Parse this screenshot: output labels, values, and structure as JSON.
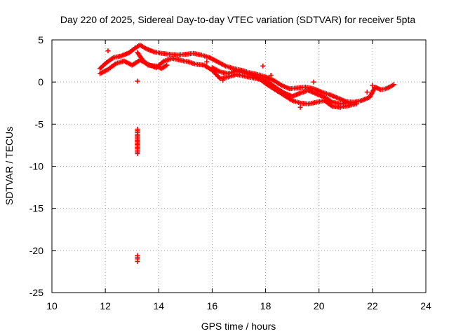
{
  "chart_data": {
    "type": "scatter",
    "title": "Day 220 of 2025, Sidereal Day-to-day VTEC variation (SDTVAR) for receiver 5pta",
    "xlabel": "GPS time / hours",
    "ylabel": "SDTVAR / TECUs",
    "xlim": [
      10,
      24
    ],
    "ylim": [
      -25,
      5
    ],
    "xticks": [
      10,
      12,
      14,
      16,
      18,
      20,
      22,
      24
    ],
    "yticks": [
      5,
      0,
      -5,
      -10,
      -15,
      -20,
      -25
    ],
    "grid": true,
    "marker": "plus",
    "color": "#ff0000",
    "series": [
      {
        "name": "SDTVAR",
        "tracks": [
          {
            "label": "main-band-upper",
            "points": [
              [
                11.8,
                1.6
              ],
              [
                12.0,
                2.2
              ],
              [
                12.3,
                2.9
              ],
              [
                12.6,
                3.1
              ],
              [
                12.9,
                3.5
              ],
              [
                13.1,
                4.0
              ],
              [
                13.3,
                4.4
              ],
              [
                13.5,
                4.0
              ],
              [
                13.8,
                3.6
              ],
              [
                14.1,
                3.4
              ],
              [
                14.4,
                3.3
              ],
              [
                14.7,
                3.2
              ],
              [
                15.0,
                3.3
              ],
              [
                15.3,
                3.4
              ],
              [
                15.6,
                3.2
              ],
              [
                15.9,
                2.9
              ],
              [
                16.2,
                2.4
              ],
              [
                16.5,
                1.9
              ],
              [
                16.8,
                1.6
              ],
              [
                17.1,
                1.4
              ],
              [
                17.4,
                1.1
              ],
              [
                17.7,
                0.9
              ],
              [
                18.0,
                0.6
              ],
              [
                18.3,
                0.2
              ],
              [
                18.6,
                -0.4
              ],
              [
                18.9,
                -0.8
              ],
              [
                19.2,
                -0.7
              ],
              [
                19.5,
                -0.6
              ],
              [
                19.8,
                -0.8
              ],
              [
                20.1,
                -1.2
              ],
              [
                20.4,
                -1.5
              ],
              [
                20.7,
                -1.9
              ],
              [
                21.0,
                -2.3
              ],
              [
                21.3,
                -2.4
              ],
              [
                21.6,
                -2.2
              ],
              [
                21.9,
                -1.8
              ],
              [
                22.1,
                -0.6
              ],
              [
                22.3,
                -0.9
              ],
              [
                22.5,
                -0.8
              ],
              [
                22.7,
                -0.5
              ],
              [
                22.8,
                -0.3
              ]
            ]
          },
          {
            "label": "main-band-lower",
            "points": [
              [
                11.8,
                1.0
              ],
              [
                12.1,
                1.5
              ],
              [
                12.4,
                2.2
              ],
              [
                12.7,
                2.5
              ],
              [
                13.0,
                2.0
              ],
              [
                13.3,
                2.6
              ],
              [
                13.6,
                2.1
              ],
              [
                13.9,
                1.7
              ],
              [
                14.2,
                2.5
              ],
              [
                14.5,
                2.8
              ],
              [
                14.8,
                2.6
              ],
              [
                15.1,
                2.4
              ],
              [
                15.4,
                2.1
              ],
              [
                15.7,
                2.0
              ],
              [
                16.0,
                1.4
              ],
              [
                16.3,
                0.4
              ],
              [
                16.6,
                0.6
              ],
              [
                16.9,
                0.9
              ],
              [
                17.2,
                0.7
              ],
              [
                17.5,
                0.5
              ],
              [
                17.8,
                0.3
              ],
              [
                18.1,
                -0.4
              ],
              [
                18.4,
                -1.0
              ],
              [
                18.7,
                -1.6
              ],
              [
                19.0,
                -2.2
              ],
              [
                19.3,
                -2.5
              ],
              [
                19.6,
                -2.6
              ],
              [
                19.9,
                -2.4
              ],
              [
                20.2,
                -2.2
              ],
              [
                20.5,
                -2.9
              ],
              [
                20.8,
                -3.0
              ],
              [
                21.1,
                -2.8
              ],
              [
                21.4,
                -2.6
              ]
            ]
          },
          {
            "label": "mid-band",
            "points": [
              [
                16.0,
                1.7
              ],
              [
                16.3,
                1.2
              ],
              [
                16.6,
                1.0
              ],
              [
                16.9,
                1.3
              ],
              [
                17.2,
                1.1
              ],
              [
                17.5,
                0.8
              ],
              [
                17.8,
                0.4
              ],
              [
                18.1,
                0.0
              ],
              [
                18.4,
                -0.7
              ],
              [
                18.7,
                -1.3
              ],
              [
                19.0,
                -1.7
              ],
              [
                19.3,
                -1.3
              ],
              [
                19.6,
                -1.0
              ],
              [
                19.9,
                -1.4
              ],
              [
                20.2,
                -1.8
              ],
              [
                20.5,
                -2.4
              ],
              [
                20.8,
                -2.6
              ],
              [
                21.1,
                -2.5
              ]
            ]
          },
          {
            "label": "dip-branch",
            "points": [
              [
                13.2,
                3.5
              ],
              [
                13.4,
                2.6
              ],
              [
                13.6,
                2.0
              ],
              [
                13.9,
                1.9
              ],
              [
                14.1,
                1.6
              ],
              [
                14.3,
                2.0
              ]
            ]
          },
          {
            "label": "outlier-minus-7",
            "points": [
              [
                13.2,
                -5.6
              ],
              [
                13.2,
                -6.2
              ],
              [
                13.2,
                -6.9
              ],
              [
                13.2,
                -7.4
              ],
              [
                13.2,
                -8.1
              ],
              [
                13.2,
                -8.5
              ]
            ]
          },
          {
            "label": "outlier-minus-21",
            "points": [
              [
                13.2,
                -20.6
              ],
              [
                13.2,
                -21.0
              ],
              [
                13.2,
                -21.3
              ]
            ]
          },
          {
            "label": "scattered",
            "points": [
              [
                12.1,
                3.7
              ],
              [
                13.2,
                0.1
              ],
              [
                15.8,
                2.4
              ],
              [
                16.4,
                0.2
              ],
              [
                17.9,
                1.9
              ],
              [
                18.2,
                0.8
              ],
              [
                19.3,
                -3.0
              ],
              [
                19.8,
                0.0
              ],
              [
                21.8,
                -1.2
              ],
              [
                22.0,
                -0.4
              ]
            ]
          }
        ]
      }
    ]
  }
}
